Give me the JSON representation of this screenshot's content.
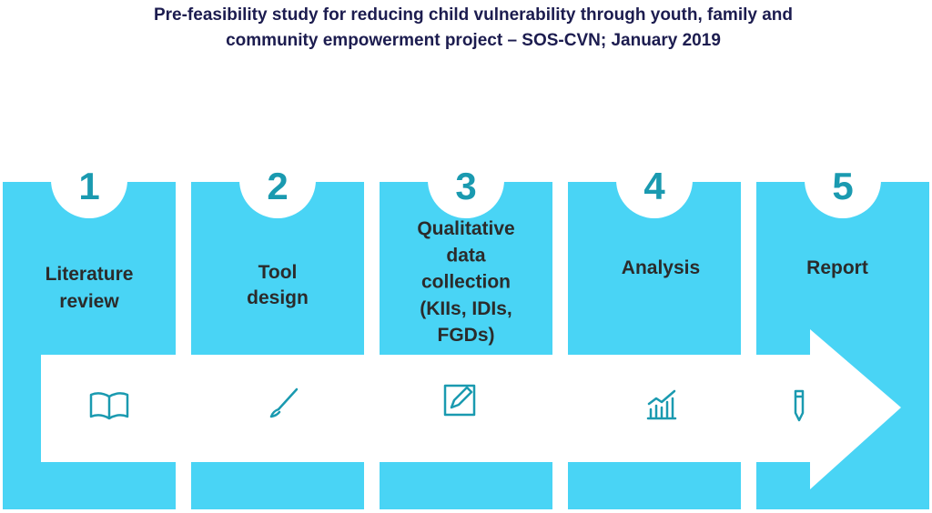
{
  "header": {
    "title_lines": [
      "Pre-feasibility study for reducing child vulnerability through youth, family and",
      "community empowerment project – SOS-CVN; January 2019"
    ]
  },
  "steps": [
    {
      "number": "1",
      "label_lines": [
        "Literature",
        "review"
      ]
    },
    {
      "number": "2",
      "label_lines": [
        "Tool",
        "design"
      ]
    },
    {
      "number": "3",
      "label_lines": [
        "Qualitative",
        "data",
        "collection",
        "(KIIs, IDIs,",
        "FGDs)"
      ]
    },
    {
      "number": "4",
      "label_lines": [
        "Analysis"
      ]
    },
    {
      "number": "5",
      "label_lines": [
        "Report"
      ]
    }
  ]
}
